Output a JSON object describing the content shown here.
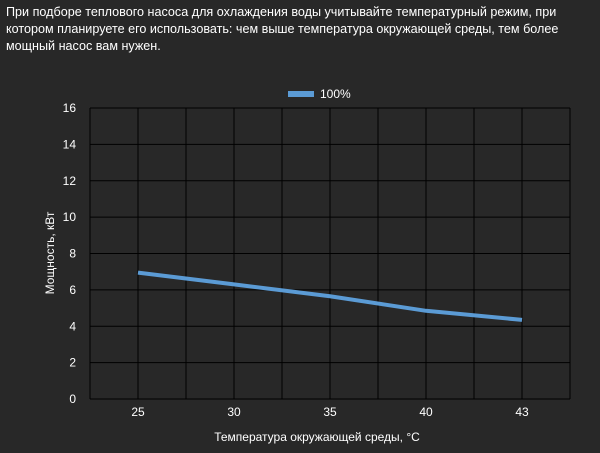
{
  "intro_text": "При подборе теплового насоса для охлаждения воды учитывайте температурный режим, при котором планируете его использовать: чем выше температура окружающей среды, тем более мощный насос вам нужен.",
  "colors": {
    "background": "#282828",
    "grid": "#000000",
    "series": "#5b9bd5",
    "text": "#ffffff"
  },
  "chart_data": {
    "type": "line",
    "title": "",
    "xlabel": "Температура окружающей среды, °C",
    "ylabel": "Мощность, кВт",
    "categories": [
      "25",
      "30",
      "35",
      "40",
      "43"
    ],
    "x_ticks": [
      "25",
      "30",
      "35",
      "40",
      "43"
    ],
    "y_ticks": [
      "0",
      "2",
      "4",
      "6",
      "8",
      "10",
      "12",
      "14",
      "16"
    ],
    "ylim": [
      0,
      16
    ],
    "grid": true,
    "legend_position": "top-center",
    "series": [
      {
        "name": "100%",
        "values": [
          6.95,
          6.3,
          5.65,
          4.85,
          4.35
        ]
      }
    ]
  }
}
